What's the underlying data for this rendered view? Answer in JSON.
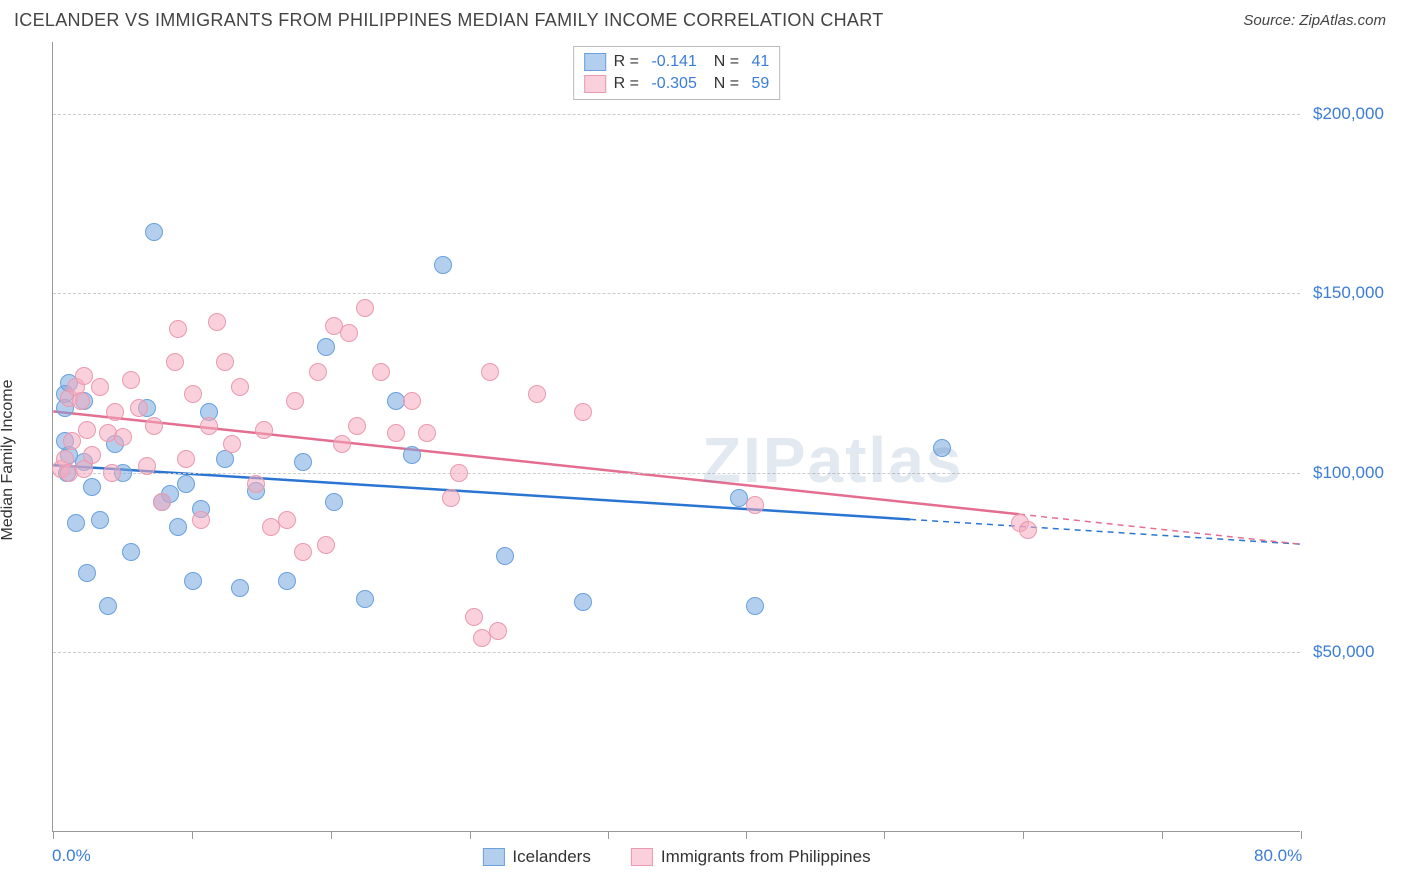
{
  "header": {
    "title": "ICELANDER VS IMMIGRANTS FROM PHILIPPINES MEDIAN FAMILY INCOME CORRELATION CHART",
    "source_label": "Source: ",
    "source_value": "ZipAtlas.com"
  },
  "chart": {
    "type": "scatter",
    "ylabel": "Median Family Income",
    "watermark": "ZIPatlas",
    "background_color": "#ffffff",
    "grid_color": "#cccccc",
    "axis_color": "#999999",
    "tick_label_color": "#3b7dd8",
    "xlim": [
      0,
      80
    ],
    "ylim": [
      0,
      220000
    ],
    "x_min_label": "0.0%",
    "x_max_label": "80.0%",
    "yticks": [
      {
        "value": 50000,
        "label": "$50,000"
      },
      {
        "value": 100000,
        "label": "$100,000"
      },
      {
        "value": 150000,
        "label": "$150,000"
      },
      {
        "value": 200000,
        "label": "$200,000"
      }
    ],
    "xtick_positions": [
      0,
      8.9,
      17.8,
      26.7,
      35.6,
      44.4,
      53.3,
      62.2,
      71.1,
      80
    ],
    "series": [
      {
        "name": "Icelanders",
        "fill_color": "rgba(119,168,223,0.55)",
        "stroke_color": "#6aa1de",
        "line_color": "#2b75d2",
        "marker_radius": 9,
        "marker_border": 1.5,
        "trend_solid_end_x": 55,
        "trend_dash_end_x": 80,
        "trend_y_start": 102000,
        "trend_y_end": 80000,
        "trendline_width": 2.5,
        "stats": {
          "R": "-0.141",
          "N": "41"
        },
        "points": [
          [
            0.8,
            122000
          ],
          [
            0.8,
            118000
          ],
          [
            0.8,
            109000
          ],
          [
            0.9,
            100000
          ],
          [
            1.0,
            125000
          ],
          [
            1.0,
            105000
          ],
          [
            1.5,
            86000
          ],
          [
            2.0,
            120000
          ],
          [
            2.0,
            103000
          ],
          [
            2.2,
            72000
          ],
          [
            2.5,
            96000
          ],
          [
            3.0,
            87000
          ],
          [
            3.5,
            63000
          ],
          [
            4.0,
            108000
          ],
          [
            4.5,
            100000
          ],
          [
            5.0,
            78000
          ],
          [
            6.0,
            118000
          ],
          [
            6.5,
            167000
          ],
          [
            7.0,
            92000
          ],
          [
            7.5,
            94000
          ],
          [
            8.0,
            85000
          ],
          [
            8.5,
            97000
          ],
          [
            9.0,
            70000
          ],
          [
            9.5,
            90000
          ],
          [
            10.0,
            117000
          ],
          [
            11.0,
            104000
          ],
          [
            12.0,
            68000
          ],
          [
            13.0,
            95000
          ],
          [
            15.0,
            70000
          ],
          [
            16.0,
            103000
          ],
          [
            17.5,
            135000
          ],
          [
            18.0,
            92000
          ],
          [
            20.0,
            65000
          ],
          [
            22.0,
            120000
          ],
          [
            23.0,
            105000
          ],
          [
            25.0,
            158000
          ],
          [
            29.0,
            77000
          ],
          [
            34.0,
            64000
          ],
          [
            44.0,
            93000
          ],
          [
            45.0,
            63000
          ],
          [
            57.0,
            107000
          ]
        ]
      },
      {
        "name": "Immigrants from Philippines",
        "fill_color": "rgba(244,169,189,0.55)",
        "stroke_color": "#eb9ab0",
        "line_color": "#e46e8f",
        "marker_radius": 9,
        "marker_border": 1.5,
        "trend_solid_end_x": 62,
        "trend_dash_end_x": 80,
        "trend_y_start": 117000,
        "trend_y_end": 80000,
        "trendline_width": 2.5,
        "stats": {
          "R": "-0.305",
          "N": "59"
        },
        "points": [
          [
            0.5,
            101000
          ],
          [
            0.8,
            104000
          ],
          [
            1.0,
            121000
          ],
          [
            1.0,
            100000
          ],
          [
            1.2,
            109000
          ],
          [
            1.5,
            124000
          ],
          [
            1.8,
            120000
          ],
          [
            2.0,
            127000
          ],
          [
            2.0,
            101000
          ],
          [
            2.2,
            112000
          ],
          [
            2.5,
            105000
          ],
          [
            3.0,
            124000
          ],
          [
            3.5,
            111000
          ],
          [
            3.8,
            100000
          ],
          [
            4.0,
            117000
          ],
          [
            4.5,
            110000
          ],
          [
            5.0,
            126000
          ],
          [
            5.5,
            118000
          ],
          [
            6.0,
            102000
          ],
          [
            6.5,
            113000
          ],
          [
            7.0,
            92000
          ],
          [
            7.8,
            131000
          ],
          [
            8.0,
            140000
          ],
          [
            8.5,
            104000
          ],
          [
            9.0,
            122000
          ],
          [
            9.5,
            87000
          ],
          [
            10.0,
            113000
          ],
          [
            10.5,
            142000
          ],
          [
            11.0,
            131000
          ],
          [
            11.5,
            108000
          ],
          [
            12.0,
            124000
          ],
          [
            13.0,
            97000
          ],
          [
            13.5,
            112000
          ],
          [
            14.0,
            85000
          ],
          [
            15.0,
            87000
          ],
          [
            15.5,
            120000
          ],
          [
            16.0,
            78000
          ],
          [
            17.0,
            128000
          ],
          [
            17.5,
            80000
          ],
          [
            18.0,
            141000
          ],
          [
            18.5,
            108000
          ],
          [
            19.0,
            139000
          ],
          [
            19.5,
            113000
          ],
          [
            20.0,
            146000
          ],
          [
            21.0,
            128000
          ],
          [
            22.0,
            111000
          ],
          [
            23.0,
            120000
          ],
          [
            24.0,
            111000
          ],
          [
            25.5,
            93000
          ],
          [
            26.0,
            100000
          ],
          [
            27.0,
            60000
          ],
          [
            27.5,
            54000
          ],
          [
            28.0,
            128000
          ],
          [
            28.5,
            56000
          ],
          [
            31.0,
            122000
          ],
          [
            34.0,
            117000
          ],
          [
            45.0,
            91000
          ],
          [
            62.0,
            86000
          ],
          [
            62.5,
            84000
          ]
        ]
      }
    ]
  }
}
